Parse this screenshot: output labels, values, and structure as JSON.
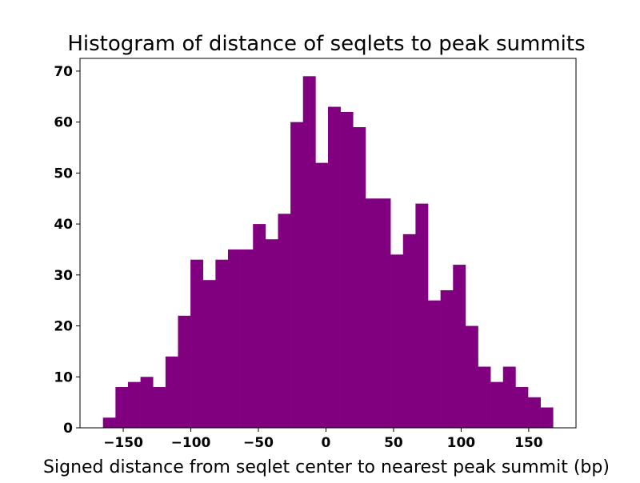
{
  "chart_data": {
    "type": "bar",
    "title": "Histogram of distance of seqlets to peak summits",
    "xlabel": "Signed distance from seqlet center to nearest peak summit (bp)",
    "ylabel": "",
    "bin_range": [
      -165,
      168
    ],
    "values": [
      2,
      8,
      9,
      10,
      8,
      14,
      22,
      33,
      29,
      33,
      35,
      35,
      40,
      37,
      42,
      60,
      69,
      52,
      63,
      62,
      59,
      45,
      45,
      34,
      38,
      44,
      25,
      27,
      32,
      20,
      12,
      9,
      12,
      8,
      6,
      4
    ],
    "xlim": [
      -182,
      185
    ],
    "ylim": [
      0,
      72.5
    ],
    "xticks": [
      -150,
      -100,
      -50,
      0,
      50,
      100,
      150
    ],
    "xtick_labels": [
      "−150",
      "−100",
      "−50",
      "0",
      "50",
      "100",
      "150"
    ],
    "yticks": [
      0,
      10,
      20,
      30,
      40,
      50,
      60,
      70
    ],
    "ytick_labels": [
      "0",
      "10",
      "20",
      "30",
      "40",
      "50",
      "60",
      "70"
    ],
    "bar_color": "#800080",
    "grid": false
  }
}
